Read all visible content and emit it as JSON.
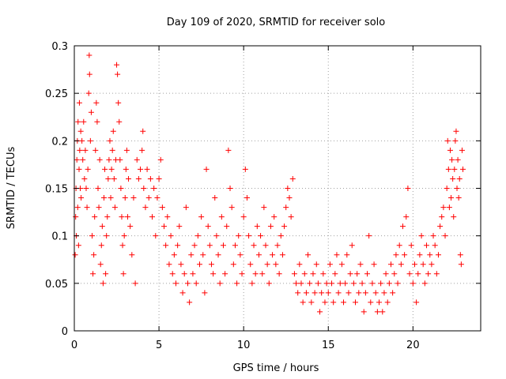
{
  "chart_data": {
    "type": "scatter",
    "title": "Day 109 of 2020, SRMTID for receiver solo",
    "xlabel": "GPS time / hours",
    "ylabel": "SRMTID / TECUs",
    "xlim": [
      0,
      24
    ],
    "ylim": [
      0,
      0.3
    ],
    "xticks": [
      0,
      5,
      10,
      15,
      20
    ],
    "xtick_labels": [
      "0",
      "5",
      "10",
      "15",
      "20"
    ],
    "yticks": [
      0,
      0.05,
      0.1,
      0.15,
      0.2,
      0.25,
      0.3
    ],
    "ytick_labels": [
      "0",
      "0.05",
      "0.1",
      "0.15",
      "0.2",
      "0.25",
      "0.3"
    ],
    "grid": true,
    "marker": "+",
    "color": "#ff0000",
    "series": [
      {
        "name": "SRMTID",
        "points": [
          [
            0.05,
            0.08
          ],
          [
            0.08,
            0.12
          ],
          [
            0.1,
            0.15
          ],
          [
            0.12,
            0.1
          ],
          [
            0.15,
            0.18
          ],
          [
            0.18,
            0.2
          ],
          [
            0.2,
            0.13
          ],
          [
            0.22,
            0.22
          ],
          [
            0.25,
            0.09
          ],
          [
            0.28,
            0.17
          ],
          [
            0.3,
            0.24
          ],
          [
            0.32,
            0.19
          ],
          [
            0.35,
            0.15
          ],
          [
            0.38,
            0.21
          ],
          [
            0.4,
            0.14
          ],
          [
            0.45,
            0.2
          ],
          [
            0.5,
            0.18
          ],
          [
            0.55,
            0.22
          ],
          [
            0.6,
            0.16
          ],
          [
            0.65,
            0.19
          ],
          [
            0.7,
            0.15
          ],
          [
            0.75,
            0.13
          ],
          [
            0.8,
            0.17
          ],
          [
            0.85,
            0.25
          ],
          [
            0.88,
            0.29
          ],
          [
            0.9,
            0.27
          ],
          [
            0.95,
            0.2
          ],
          [
            1.0,
            0.23
          ],
          [
            1.05,
            0.1
          ],
          [
            1.1,
            0.06
          ],
          [
            1.15,
            0.08
          ],
          [
            1.2,
            0.12
          ],
          [
            1.25,
            0.19
          ],
          [
            1.3,
            0.24
          ],
          [
            1.35,
            0.22
          ],
          [
            1.4,
            0.15
          ],
          [
            1.45,
            0.13
          ],
          [
            1.5,
            0.18
          ],
          [
            1.55,
            0.07
          ],
          [
            1.6,
            0.09
          ],
          [
            1.65,
            0.11
          ],
          [
            1.7,
            0.05
          ],
          [
            1.75,
            0.14
          ],
          [
            1.8,
            0.17
          ],
          [
            1.85,
            0.06
          ],
          [
            1.9,
            0.1
          ],
          [
            1.95,
            0.12
          ],
          [
            2.0,
            0.16
          ],
          [
            2.05,
            0.18
          ],
          [
            2.1,
            0.2
          ],
          [
            2.15,
            0.14
          ],
          [
            2.2,
            0.17
          ],
          [
            2.25,
            0.19
          ],
          [
            2.3,
            0.21
          ],
          [
            2.35,
            0.16
          ],
          [
            2.4,
            0.13
          ],
          [
            2.45,
            0.18
          ],
          [
            2.5,
            0.28
          ],
          [
            2.55,
            0.27
          ],
          [
            2.6,
            0.24
          ],
          [
            2.65,
            0.22
          ],
          [
            2.7,
            0.18
          ],
          [
            2.75,
            0.15
          ],
          [
            2.8,
            0.12
          ],
          [
            2.85,
            0.09
          ],
          [
            2.9,
            0.06
          ],
          [
            2.95,
            0.1
          ],
          [
            3.0,
            0.14
          ],
          [
            3.05,
            0.17
          ],
          [
            3.1,
            0.19
          ],
          [
            3.15,
            0.12
          ],
          [
            3.2,
            0.16
          ],
          [
            3.3,
            0.11
          ],
          [
            3.4,
            0.08
          ],
          [
            3.5,
            0.14
          ],
          [
            3.6,
            0.05
          ],
          [
            3.7,
            0.18
          ],
          [
            3.8,
            0.16
          ],
          [
            3.9,
            0.17
          ],
          [
            4.0,
            0.19
          ],
          [
            4.05,
            0.21
          ],
          [
            4.1,
            0.15
          ],
          [
            4.2,
            0.13
          ],
          [
            4.3,
            0.17
          ],
          [
            4.4,
            0.14
          ],
          [
            4.5,
            0.16
          ],
          [
            4.6,
            0.12
          ],
          [
            4.7,
            0.15
          ],
          [
            4.8,
            0.1
          ],
          [
            4.9,
            0.14
          ],
          [
            5.0,
            0.16
          ],
          [
            5.1,
            0.18
          ],
          [
            5.2,
            0.13
          ],
          [
            5.3,
            0.11
          ],
          [
            5.4,
            0.09
          ],
          [
            5.5,
            0.12
          ],
          [
            5.6,
            0.07
          ],
          [
            5.7,
            0.1
          ],
          [
            5.8,
            0.06
          ],
          [
            5.9,
            0.08
          ],
          [
            6.0,
            0.05
          ],
          [
            6.1,
            0.09
          ],
          [
            6.2,
            0.11
          ],
          [
            6.3,
            0.07
          ],
          [
            6.4,
            0.04
          ],
          [
            6.5,
            0.06
          ],
          [
            6.6,
            0.13
          ],
          [
            6.7,
            0.05
          ],
          [
            6.8,
            0.03
          ],
          [
            6.9,
            0.08
          ],
          [
            7.0,
            0.06
          ],
          [
            7.1,
            0.09
          ],
          [
            7.2,
            0.05
          ],
          [
            7.3,
            0.1
          ],
          [
            7.4,
            0.07
          ],
          [
            7.5,
            0.12
          ],
          [
            7.6,
            0.08
          ],
          [
            7.7,
            0.04
          ],
          [
            7.8,
            0.17
          ],
          [
            7.9,
            0.11
          ],
          [
            8.0,
            0.09
          ],
          [
            8.1,
            0.07
          ],
          [
            8.2,
            0.06
          ],
          [
            8.3,
            0.14
          ],
          [
            8.4,
            0.1
          ],
          [
            8.5,
            0.08
          ],
          [
            8.6,
            0.05
          ],
          [
            8.7,
            0.12
          ],
          [
            8.8,
            0.09
          ],
          [
            8.9,
            0.06
          ],
          [
            9.0,
            0.11
          ],
          [
            9.1,
            0.19
          ],
          [
            9.2,
            0.15
          ],
          [
            9.3,
            0.13
          ],
          [
            9.4,
            0.07
          ],
          [
            9.5,
            0.09
          ],
          [
            9.6,
            0.05
          ],
          [
            9.7,
            0.1
          ],
          [
            9.8,
            0.08
          ],
          [
            9.9,
            0.06
          ],
          [
            10.0,
            0.12
          ],
          [
            10.1,
            0.17
          ],
          [
            10.2,
            0.14
          ],
          [
            10.3,
            0.1
          ],
          [
            10.4,
            0.07
          ],
          [
            10.5,
            0.05
          ],
          [
            10.6,
            0.09
          ],
          [
            10.7,
            0.06
          ],
          [
            10.8,
            0.11
          ],
          [
            10.9,
            0.08
          ],
          [
            11.0,
            0.1
          ],
          [
            11.1,
            0.06
          ],
          [
            11.2,
            0.13
          ],
          [
            11.3,
            0.09
          ],
          [
            11.4,
            0.07
          ],
          [
            11.5,
            0.05
          ],
          [
            11.6,
            0.11
          ],
          [
            11.7,
            0.08
          ],
          [
            11.8,
            0.12
          ],
          [
            11.9,
            0.07
          ],
          [
            12.0,
            0.09
          ],
          [
            12.1,
            0.06
          ],
          [
            12.2,
            0.1
          ],
          [
            12.3,
            0.08
          ],
          [
            12.4,
            0.11
          ],
          [
            12.5,
            0.13
          ],
          [
            12.6,
            0.15
          ],
          [
            12.7,
            0.14
          ],
          [
            12.8,
            0.12
          ],
          [
            12.9,
            0.16
          ],
          [
            13.0,
            0.06
          ],
          [
            13.1,
            0.05
          ],
          [
            13.2,
            0.04
          ],
          [
            13.3,
            0.07
          ],
          [
            13.4,
            0.05
          ],
          [
            13.5,
            0.03
          ],
          [
            13.6,
            0.06
          ],
          [
            13.7,
            0.04
          ],
          [
            13.8,
            0.08
          ],
          [
            13.9,
            0.05
          ],
          [
            14.0,
            0.03
          ],
          [
            14.1,
            0.06
          ],
          [
            14.2,
            0.04
          ],
          [
            14.3,
            0.07
          ],
          [
            14.4,
            0.05
          ],
          [
            14.5,
            0.02
          ],
          [
            14.6,
            0.04
          ],
          [
            14.7,
            0.06
          ],
          [
            14.8,
            0.03
          ],
          [
            14.9,
            0.05
          ],
          [
            15.0,
            0.04
          ],
          [
            15.1,
            0.07
          ],
          [
            15.2,
            0.05
          ],
          [
            15.3,
            0.03
          ],
          [
            15.4,
            0.06
          ],
          [
            15.5,
            0.08
          ],
          [
            15.6,
            0.04
          ],
          [
            15.7,
            0.05
          ],
          [
            15.8,
            0.07
          ],
          [
            15.9,
            0.03
          ],
          [
            16.0,
            0.05
          ],
          [
            16.1,
            0.08
          ],
          [
            16.2,
            0.04
          ],
          [
            16.3,
            0.06
          ],
          [
            16.4,
            0.09
          ],
          [
            16.5,
            0.05
          ],
          [
            16.6,
            0.03
          ],
          [
            16.7,
            0.06
          ],
          [
            16.8,
            0.04
          ],
          [
            16.9,
            0.07
          ],
          [
            17.0,
            0.05
          ],
          [
            17.1,
            0.02
          ],
          [
            17.2,
            0.04
          ],
          [
            17.3,
            0.06
          ],
          [
            17.4,
            0.1
          ],
          [
            17.5,
            0.03
          ],
          [
            17.6,
            0.05
          ],
          [
            17.7,
            0.07
          ],
          [
            17.8,
            0.04
          ],
          [
            17.9,
            0.02
          ],
          [
            18.0,
            0.03
          ],
          [
            18.1,
            0.05
          ],
          [
            18.2,
            0.02
          ],
          [
            18.3,
            0.04
          ],
          [
            18.4,
            0.06
          ],
          [
            18.5,
            0.03
          ],
          [
            18.6,
            0.05
          ],
          [
            18.7,
            0.07
          ],
          [
            18.8,
            0.04
          ],
          [
            18.9,
            0.06
          ],
          [
            19.0,
            0.08
          ],
          [
            19.1,
            0.05
          ],
          [
            19.2,
            0.09
          ],
          [
            19.3,
            0.07
          ],
          [
            19.4,
            0.11
          ],
          [
            19.5,
            0.08
          ],
          [
            19.6,
            0.12
          ],
          [
            19.7,
            0.15
          ],
          [
            19.8,
            0.06
          ],
          [
            19.9,
            0.09
          ],
          [
            20.0,
            0.05
          ],
          [
            20.1,
            0.07
          ],
          [
            20.2,
            0.03
          ],
          [
            20.3,
            0.06
          ],
          [
            20.4,
            0.08
          ],
          [
            20.5,
            0.1
          ],
          [
            20.6,
            0.07
          ],
          [
            20.7,
            0.05
          ],
          [
            20.8,
            0.09
          ],
          [
            20.9,
            0.06
          ],
          [
            21.0,
            0.08
          ],
          [
            21.1,
            0.07
          ],
          [
            21.2,
            0.1
          ],
          [
            21.3,
            0.09
          ],
          [
            21.4,
            0.06
          ],
          [
            21.5,
            0.08
          ],
          [
            21.6,
            0.11
          ],
          [
            21.7,
            0.12
          ],
          [
            21.8,
            0.13
          ],
          [
            21.9,
            0.1
          ],
          [
            22.0,
            0.15
          ],
          [
            22.05,
            0.2
          ],
          [
            22.1,
            0.17
          ],
          [
            22.15,
            0.13
          ],
          [
            22.2,
            0.19
          ],
          [
            22.25,
            0.14
          ],
          [
            22.3,
            0.18
          ],
          [
            22.35,
            0.16
          ],
          [
            22.4,
            0.12
          ],
          [
            22.45,
            0.17
          ],
          [
            22.5,
            0.2
          ],
          [
            22.55,
            0.21
          ],
          [
            22.6,
            0.15
          ],
          [
            22.65,
            0.18
          ],
          [
            22.7,
            0.14
          ],
          [
            22.75,
            0.16
          ],
          [
            22.8,
            0.08
          ],
          [
            22.85,
            0.07
          ],
          [
            22.9,
            0.19
          ],
          [
            22.95,
            0.17
          ]
        ]
      }
    ]
  }
}
